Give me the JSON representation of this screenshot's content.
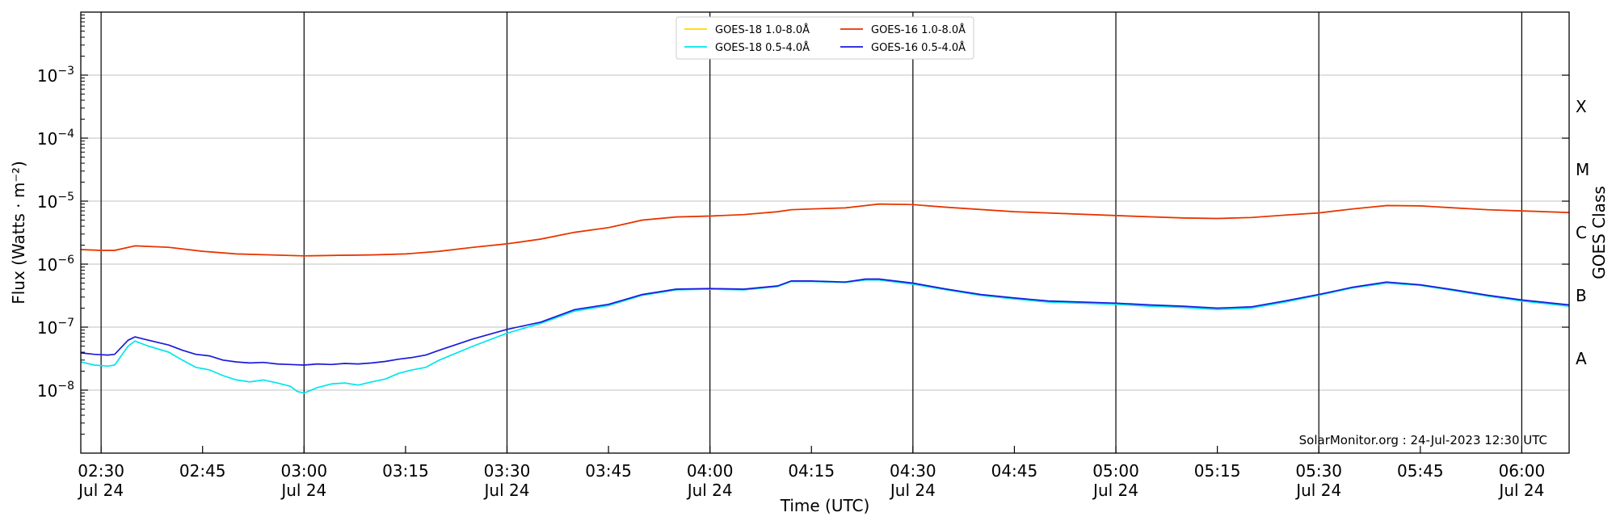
{
  "chart_data": {
    "type": "line",
    "xlabel": "Time (UTC)",
    "ylabel": "Flux (Watts · m⁻²)",
    "y2label": "GOES Class",
    "yscale": "log",
    "ylim": [
      1e-09,
      0.01
    ],
    "xlim": [
      "02:27",
      "06:07"
    ],
    "date": "Jul 24",
    "credit": "SolarMonitor.org : 24-Jul-2023 12:30 UTC",
    "grid": "horizontal at decades; vertical at half-hours",
    "legend_placement": "top-center",
    "x_ticks": [
      {
        "t": "02:30",
        "label": "02:30",
        "sub": "Jul 24"
      },
      {
        "t": "02:45",
        "label": "02:45",
        "sub": ""
      },
      {
        "t": "03:00",
        "label": "03:00",
        "sub": "Jul 24"
      },
      {
        "t": "03:15",
        "label": "03:15",
        "sub": ""
      },
      {
        "t": "03:30",
        "label": "03:30",
        "sub": "Jul 24"
      },
      {
        "t": "03:45",
        "label": "03:45",
        "sub": ""
      },
      {
        "t": "04:00",
        "label": "04:00",
        "sub": "Jul 24"
      },
      {
        "t": "04:15",
        "label": "04:15",
        "sub": ""
      },
      {
        "t": "04:30",
        "label": "04:30",
        "sub": "Jul 24"
      },
      {
        "t": "04:45",
        "label": "04:45",
        "sub": ""
      },
      {
        "t": "05:00",
        "label": "05:00",
        "sub": "Jul 24"
      },
      {
        "t": "05:15",
        "label": "05:15",
        "sub": ""
      },
      {
        "t": "05:30",
        "label": "05:30",
        "sub": "Jul 24"
      },
      {
        "t": "05:45",
        "label": "05:45",
        "sub": ""
      },
      {
        "t": "06:00",
        "label": "06:00",
        "sub": "Jul 24"
      }
    ],
    "y_ticks": [
      {
        "value": 1e-08,
        "exp": "−8"
      },
      {
        "value": 1e-07,
        "exp": "−7"
      },
      {
        "value": 1e-06,
        "exp": "−6"
      },
      {
        "value": 1e-05,
        "exp": "−5"
      },
      {
        "value": 0.0001,
        "exp": "−4"
      },
      {
        "value": 0.001,
        "exp": "−3"
      }
    ],
    "goes_classes": [
      {
        "label": "A",
        "value": 3.16e-08
      },
      {
        "label": "B",
        "value": 3.16e-07
      },
      {
        "label": "C",
        "value": 3.16e-06
      },
      {
        "label": "M",
        "value": 3.16e-05
      },
      {
        "label": "X",
        "value": 0.000316
      }
    ],
    "series": [
      {
        "name": "GOES-18 1.0-8.0Å",
        "color": "#ffd700",
        "points": [
          [
            "02:27",
            1.7e-06
          ],
          [
            "02:30",
            1.65e-06
          ],
          [
            "02:32",
            1.65e-06
          ],
          [
            "02:35",
            1.95e-06
          ],
          [
            "02:40",
            1.85e-06
          ],
          [
            "02:45",
            1.6e-06
          ],
          [
            "02:50",
            1.45e-06
          ],
          [
            "03:00",
            1.35e-06
          ],
          [
            "03:05",
            1.38e-06
          ],
          [
            "03:10",
            1.4e-06
          ],
          [
            "03:15",
            1.45e-06
          ],
          [
            "03:20",
            1.6e-06
          ],
          [
            "03:25",
            1.85e-06
          ],
          [
            "03:30",
            2.1e-06
          ],
          [
            "03:35",
            2.5e-06
          ],
          [
            "03:40",
            3.2e-06
          ],
          [
            "03:45",
            3.8e-06
          ],
          [
            "03:50",
            5e-06
          ],
          [
            "03:55",
            5.6e-06
          ],
          [
            "04:00",
            5.8e-06
          ],
          [
            "04:05",
            6.1e-06
          ],
          [
            "04:10",
            6.8e-06
          ],
          [
            "04:12",
            7.3e-06
          ],
          [
            "04:15",
            7.5e-06
          ],
          [
            "04:20",
            7.8e-06
          ],
          [
            "04:25",
            9e-06
          ],
          [
            "04:30",
            8.8e-06
          ],
          [
            "04:35",
            8e-06
          ],
          [
            "04:45",
            6.8e-06
          ],
          [
            "05:00",
            5.9e-06
          ],
          [
            "05:10",
            5.4e-06
          ],
          [
            "05:15",
            5.3e-06
          ],
          [
            "05:20",
            5.5e-06
          ],
          [
            "05:25",
            6e-06
          ],
          [
            "05:30",
            6.5e-06
          ],
          [
            "05:35",
            7.5e-06
          ],
          [
            "05:40",
            8.5e-06
          ],
          [
            "05:45",
            8.4e-06
          ],
          [
            "05:50",
            7.8e-06
          ],
          [
            "05:55",
            7.3e-06
          ],
          [
            "06:00",
            7e-06
          ],
          [
            "06:07",
            6.6e-06
          ]
        ]
      },
      {
        "name": "GOES-16 1.0-8.0Å",
        "color": "#e8300a",
        "points": [
          [
            "02:27",
            1.7e-06
          ],
          [
            "02:30",
            1.65e-06
          ],
          [
            "02:32",
            1.65e-06
          ],
          [
            "02:35",
            1.95e-06
          ],
          [
            "02:40",
            1.85e-06
          ],
          [
            "02:45",
            1.6e-06
          ],
          [
            "02:50",
            1.45e-06
          ],
          [
            "03:00",
            1.35e-06
          ],
          [
            "03:05",
            1.38e-06
          ],
          [
            "03:10",
            1.4e-06
          ],
          [
            "03:15",
            1.45e-06
          ],
          [
            "03:20",
            1.6e-06
          ],
          [
            "03:25",
            1.85e-06
          ],
          [
            "03:30",
            2.1e-06
          ],
          [
            "03:35",
            2.5e-06
          ],
          [
            "03:40",
            3.2e-06
          ],
          [
            "03:45",
            3.8e-06
          ],
          [
            "03:50",
            5e-06
          ],
          [
            "03:55",
            5.6e-06
          ],
          [
            "04:00",
            5.8e-06
          ],
          [
            "04:05",
            6.1e-06
          ],
          [
            "04:10",
            6.8e-06
          ],
          [
            "04:12",
            7.3e-06
          ],
          [
            "04:15",
            7.5e-06
          ],
          [
            "04:20",
            7.8e-06
          ],
          [
            "04:25",
            9e-06
          ],
          [
            "04:30",
            8.8e-06
          ],
          [
            "04:35",
            8e-06
          ],
          [
            "04:45",
            6.8e-06
          ],
          [
            "05:00",
            5.9e-06
          ],
          [
            "05:10",
            5.4e-06
          ],
          [
            "05:15",
            5.3e-06
          ],
          [
            "05:20",
            5.5e-06
          ],
          [
            "05:25",
            6e-06
          ],
          [
            "05:30",
            6.5e-06
          ],
          [
            "05:35",
            7.5e-06
          ],
          [
            "05:40",
            8.5e-06
          ],
          [
            "05:45",
            8.4e-06
          ],
          [
            "05:50",
            7.8e-06
          ],
          [
            "05:55",
            7.3e-06
          ],
          [
            "06:00",
            7e-06
          ],
          [
            "06:07",
            6.6e-06
          ]
        ]
      },
      {
        "name": "GOES-18 0.5-4.0Å",
        "color": "#00e5ee",
        "points": [
          [
            "02:27",
            2.8e-08
          ],
          [
            "02:29",
            2.5e-08
          ],
          [
            "02:31",
            2.4e-08
          ],
          [
            "02:32",
            2.5e-08
          ],
          [
            "02:34",
            5e-08
          ],
          [
            "02:35",
            6e-08
          ],
          [
            "02:37",
            5e-08
          ],
          [
            "02:40",
            4e-08
          ],
          [
            "02:42",
            3e-08
          ],
          [
            "02:44",
            2.3e-08
          ],
          [
            "02:46",
            2.1e-08
          ],
          [
            "02:48",
            1.7e-08
          ],
          [
            "02:50",
            1.45e-08
          ],
          [
            "02:52",
            1.35e-08
          ],
          [
            "02:54",
            1.45e-08
          ],
          [
            "02:56",
            1.3e-08
          ],
          [
            "02:58",
            1.15e-08
          ],
          [
            "02:59",
            9.5e-09
          ],
          [
            "03:00",
            9e-09
          ],
          [
            "03:02",
            1.1e-08
          ],
          [
            "03:04",
            1.25e-08
          ],
          [
            "03:06",
            1.3e-08
          ],
          [
            "03:08",
            1.2e-08
          ],
          [
            "03:10",
            1.35e-08
          ],
          [
            "03:12",
            1.5e-08
          ],
          [
            "03:14",
            1.85e-08
          ],
          [
            "03:16",
            2.1e-08
          ],
          [
            "03:18",
            2.3e-08
          ],
          [
            "03:20",
            3e-08
          ],
          [
            "03:25",
            5e-08
          ],
          [
            "03:30",
            8e-08
          ],
          [
            "03:35",
            1.15e-07
          ],
          [
            "03:40",
            1.8e-07
          ],
          [
            "03:45",
            2.2e-07
          ],
          [
            "03:50",
            3.2e-07
          ],
          [
            "03:55",
            3.9e-07
          ],
          [
            "04:00",
            4e-07
          ],
          [
            "04:05",
            3.9e-07
          ],
          [
            "04:10",
            4.4e-07
          ],
          [
            "04:12",
            5.3e-07
          ],
          [
            "04:15",
            5.3e-07
          ],
          [
            "04:20",
            5.1e-07
          ],
          [
            "04:23",
            5.6e-07
          ],
          [
            "04:25",
            5.6e-07
          ],
          [
            "04:30",
            4.8e-07
          ],
          [
            "04:35",
            3.9e-07
          ],
          [
            "04:40",
            3.2e-07
          ],
          [
            "04:45",
            2.8e-07
          ],
          [
            "04:50",
            2.5e-07
          ],
          [
            "05:00",
            2.3e-07
          ],
          [
            "05:05",
            2.15e-07
          ],
          [
            "05:10",
            2.05e-07
          ],
          [
            "05:15",
            1.9e-07
          ],
          [
            "05:20",
            2e-07
          ],
          [
            "05:25",
            2.5e-07
          ],
          [
            "05:30",
            3.2e-07
          ],
          [
            "05:35",
            4.2e-07
          ],
          [
            "05:40",
            5e-07
          ],
          [
            "05:45",
            4.6e-07
          ],
          [
            "05:50",
            3.8e-07
          ],
          [
            "05:55",
            3.1e-07
          ],
          [
            "06:00",
            2.6e-07
          ],
          [
            "06:07",
            2.15e-07
          ]
        ]
      },
      {
        "name": "GOES-16 0.5-4.0Å",
        "color": "#1a1adc",
        "points": [
          [
            "02:27",
            3.9e-08
          ],
          [
            "02:29",
            3.7e-08
          ],
          [
            "02:31",
            3.6e-08
          ],
          [
            "02:32",
            3.7e-08
          ],
          [
            "02:34",
            6.2e-08
          ],
          [
            "02:35",
            7e-08
          ],
          [
            "02:37",
            6.2e-08
          ],
          [
            "02:40",
            5.2e-08
          ],
          [
            "02:42",
            4.3e-08
          ],
          [
            "02:44",
            3.7e-08
          ],
          [
            "02:46",
            3.5e-08
          ],
          [
            "02:48",
            3e-08
          ],
          [
            "02:50",
            2.8e-08
          ],
          [
            "02:52",
            2.7e-08
          ],
          [
            "02:54",
            2.75e-08
          ],
          [
            "02:56",
            2.6e-08
          ],
          [
            "02:58",
            2.55e-08
          ],
          [
            "03:00",
            2.5e-08
          ],
          [
            "03:02",
            2.6e-08
          ],
          [
            "03:04",
            2.55e-08
          ],
          [
            "03:06",
            2.65e-08
          ],
          [
            "03:08",
            2.6e-08
          ],
          [
            "03:10",
            2.7e-08
          ],
          [
            "03:12",
            2.85e-08
          ],
          [
            "03:14",
            3.1e-08
          ],
          [
            "03:16",
            3.3e-08
          ],
          [
            "03:18",
            3.6e-08
          ],
          [
            "03:20",
            4.3e-08
          ],
          [
            "03:25",
            6.5e-08
          ],
          [
            "03:30",
            9.2e-08
          ],
          [
            "03:35",
            1.2e-07
          ],
          [
            "03:40",
            1.9e-07
          ],
          [
            "03:45",
            2.3e-07
          ],
          [
            "03:50",
            3.3e-07
          ],
          [
            "03:55",
            4e-07
          ],
          [
            "04:00",
            4.1e-07
          ],
          [
            "04:05",
            4e-07
          ],
          [
            "04:10",
            4.5e-07
          ],
          [
            "04:12",
            5.4e-07
          ],
          [
            "04:15",
            5.4e-07
          ],
          [
            "04:20",
            5.2e-07
          ],
          [
            "04:23",
            5.8e-07
          ],
          [
            "04:25",
            5.8e-07
          ],
          [
            "04:30",
            5e-07
          ],
          [
            "04:35",
            4e-07
          ],
          [
            "04:40",
            3.3e-07
          ],
          [
            "04:45",
            2.9e-07
          ],
          [
            "04:50",
            2.6e-07
          ],
          [
            "05:00",
            2.4e-07
          ],
          [
            "05:05",
            2.25e-07
          ],
          [
            "05:10",
            2.15e-07
          ],
          [
            "05:15",
            2e-07
          ],
          [
            "05:20",
            2.1e-07
          ],
          [
            "05:25",
            2.6e-07
          ],
          [
            "05:30",
            3.3e-07
          ],
          [
            "05:35",
            4.3e-07
          ],
          [
            "05:40",
            5.2e-07
          ],
          [
            "05:45",
            4.7e-07
          ],
          [
            "05:50",
            3.9e-07
          ],
          [
            "05:55",
            3.2e-07
          ],
          [
            "06:00",
            2.7e-07
          ],
          [
            "06:07",
            2.25e-07
          ]
        ]
      }
    ],
    "legend_order": [
      0,
      2,
      1,
      3
    ]
  }
}
